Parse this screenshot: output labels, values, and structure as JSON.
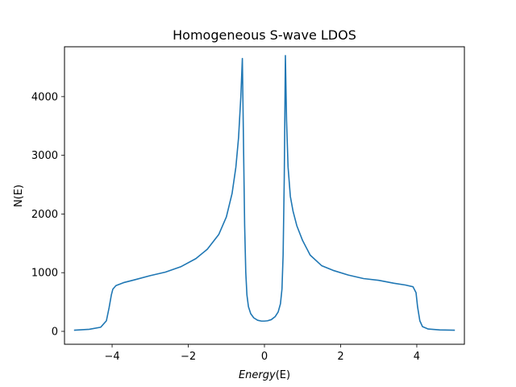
{
  "chart_data": {
    "type": "line",
    "title": "Homogeneous S-wave LDOS",
    "xlabel_parts": [
      "Energy",
      "(E)"
    ],
    "ylabel": "N(E)",
    "xlim": [
      -5.25,
      5.25
    ],
    "ylim": [
      -220,
      4850
    ],
    "xticks": [
      -4,
      -2,
      0,
      2,
      4
    ],
    "xtick_labels": [
      "−4",
      "−2",
      "0",
      "2",
      "4"
    ],
    "yticks": [
      0,
      1000,
      2000,
      3000,
      4000
    ],
    "ytick_labels": [
      "0",
      "1000",
      "2000",
      "3000",
      "4000"
    ],
    "grid": false,
    "line_color": "#1f77b4",
    "series": [
      {
        "x": [
          -5.0,
          -4.6,
          -4.3,
          -4.15,
          -4.08,
          -4.02,
          -3.98,
          -3.9,
          -3.7,
          -3.4,
          -3.0,
          -2.6,
          -2.2,
          -1.8,
          -1.5,
          -1.2,
          -1.0,
          -0.85,
          -0.75,
          -0.68,
          -0.62,
          -0.58,
          -0.55,
          -0.52,
          -0.49,
          -0.46,
          -0.42,
          -0.36,
          -0.28,
          -0.18,
          -0.08,
          0.0,
          0.08,
          0.18,
          0.28,
          0.36,
          0.42,
          0.46,
          0.49,
          0.52,
          0.55,
          0.58,
          0.62,
          0.68,
          0.75,
          0.85,
          1.0,
          1.2,
          1.5,
          1.8,
          2.2,
          2.6,
          3.0,
          3.4,
          3.7,
          3.9,
          3.98,
          4.02,
          4.08,
          4.15,
          4.3,
          4.6,
          5.0
        ],
        "y": [
          20,
          35,
          70,
          180,
          400,
          620,
          720,
          780,
          830,
          880,
          950,
          1010,
          1100,
          1240,
          1400,
          1650,
          1950,
          2350,
          2800,
          3300,
          4000,
          4650,
          3200,
          1800,
          1000,
          620,
          420,
          300,
          230,
          190,
          175,
          175,
          180,
          200,
          250,
          330,
          470,
          720,
          1300,
          2600,
          4700,
          3600,
          2800,
          2300,
          2050,
          1800,
          1550,
          1300,
          1120,
          1040,
          960,
          900,
          870,
          820,
          790,
          760,
          660,
          420,
          180,
          80,
          40,
          25,
          20
        ]
      }
    ]
  }
}
